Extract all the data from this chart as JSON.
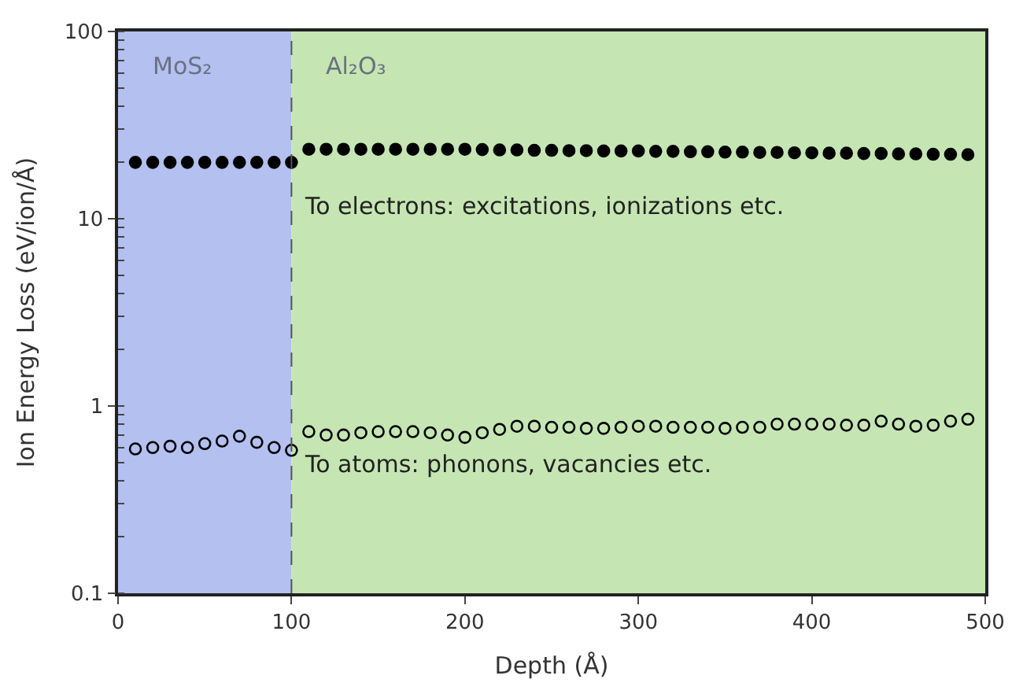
{
  "chart_data": {
    "type": "scatter",
    "xlabel": "Depth (Å)",
    "ylabel": "Ion Energy Loss (eV/ion/Å)",
    "x": [
      10,
      20,
      30,
      40,
      50,
      60,
      70,
      80,
      90,
      100,
      110,
      120,
      130,
      140,
      150,
      160,
      170,
      180,
      190,
      200,
      210,
      220,
      230,
      240,
      250,
      260,
      270,
      280,
      290,
      300,
      310,
      320,
      330,
      340,
      350,
      360,
      370,
      380,
      390,
      400,
      410,
      420,
      430,
      440,
      450,
      460,
      470,
      480,
      490
    ],
    "series": [
      {
        "color": "#000000",
        "marker": "circle",
        "values": [
          20,
          20,
          20,
          20,
          20,
          20,
          20,
          20,
          20,
          20,
          23.5,
          23.5,
          23.5,
          23.5,
          23.5,
          23.5,
          23.5,
          23.5,
          23.5,
          23.5,
          23.4,
          23.3,
          23.3,
          23.2,
          23.2,
          23.1,
          23.1,
          23,
          23,
          23,
          22.9,
          22.9,
          22.8,
          22.8,
          22.7,
          22.7,
          22.6,
          22.6,
          22.5,
          22.5,
          22.4,
          22.4,
          22.3,
          22.3,
          22.2,
          22.2,
          22.1,
          22.1,
          22
        ]
      },
      {
        "color": "#000000",
        "marker": "circle-open",
        "values": [
          0.59,
          0.6,
          0.61,
          0.6,
          0.63,
          0.65,
          0.69,
          0.64,
          0.6,
          0.58,
          0.73,
          0.7,
          0.7,
          0.72,
          0.73,
          0.73,
          0.73,
          0.72,
          0.7,
          0.68,
          0.72,
          0.75,
          0.78,
          0.78,
          0.77,
          0.77,
          0.76,
          0.76,
          0.77,
          0.78,
          0.78,
          0.77,
          0.77,
          0.77,
          0.76,
          0.77,
          0.77,
          0.8,
          0.8,
          0.8,
          0.8,
          0.79,
          0.79,
          0.83,
          0.8,
          0.78,
          0.79,
          0.83,
          0.85
        ]
      }
    ],
    "xlim": [
      0,
      500
    ],
    "xticks": [
      0,
      100,
      200,
      300,
      400,
      500
    ],
    "log": "y",
    "ylim": [
      0.1,
      100
    ],
    "yticks": [
      0.1,
      1,
      10,
      100
    ],
    "bands": [
      {
        "axis": "x",
        "from": 0,
        "to": 100,
        "label": "MoS₂",
        "color": "#b3c0f0"
      },
      {
        "axis": "x",
        "from": 100,
        "to": 500,
        "label": "Al₂O₃",
        "color": "#c5e6b3"
      }
    ],
    "ref_lines": [
      {
        "axis": "x",
        "value": 100,
        "line_style": "dashed",
        "color": "#555555"
      }
    ],
    "annotations": [
      "To electrons: excitations, ionizations etc.",
      "To atoms: phonons, vacancies etc."
    ],
    "grid": false
  }
}
